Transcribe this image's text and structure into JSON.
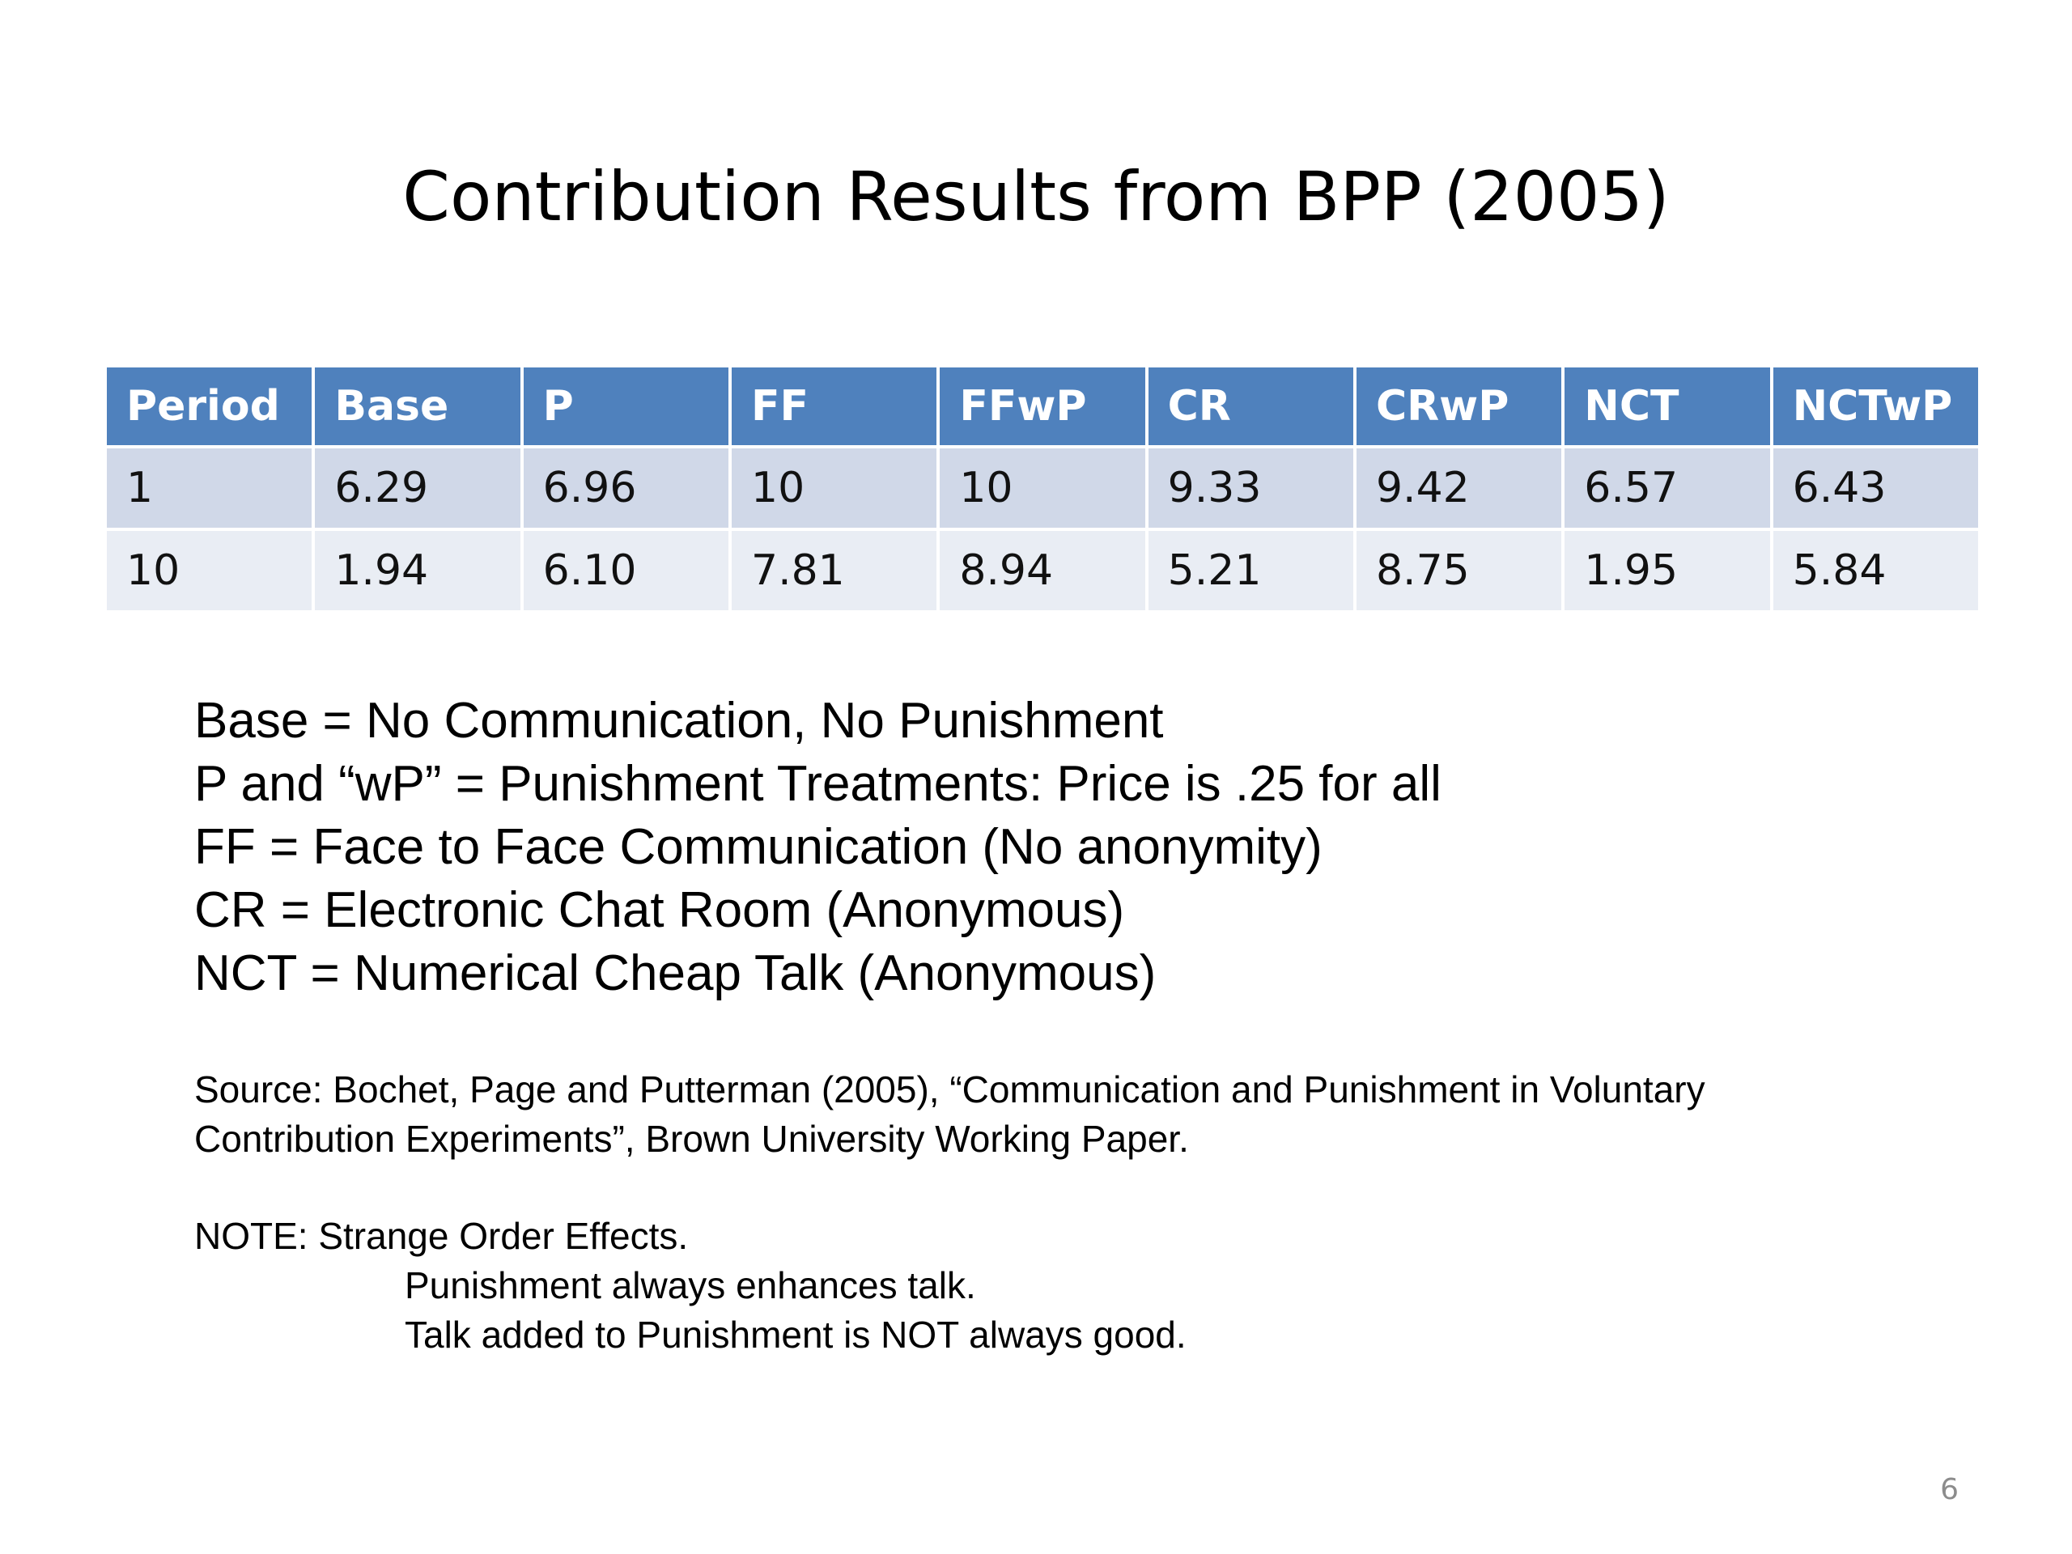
{
  "slide": {
    "title": "Contribution Results from BPP (2005)",
    "page_number": "6"
  },
  "table": {
    "headers": [
      "Period",
      "Base",
      "P",
      "FF",
      "FFwP",
      "CR",
      "CRwP",
      "NCT",
      "NCTwP"
    ],
    "rows": [
      [
        "1",
        "6.29",
        "6.96",
        "10",
        "10",
        "9.33",
        "9.42",
        "6.57",
        "6.43"
      ],
      [
        "10",
        "1.94",
        "6.10",
        "7.81",
        "8.94",
        "5.21",
        "8.75",
        "1.95",
        "5.84"
      ]
    ]
  },
  "legend": [
    "Base = No Communication, No Punishment",
    "P and “wP” = Punishment Treatments: Price is .25 for all",
    "FF = Face to Face Communication (No anonymity)",
    "CR = Electronic Chat Room (Anonymous)",
    "NCT = Numerical Cheap Talk (Anonymous)"
  ],
  "source": {
    "line1": "Source: Bochet, Page and Putterman (2005), “Communication and Punishment in Voluntary",
    "line2": "Contribution Experiments”, Brown University Working Paper."
  },
  "note": {
    "heading": "NOTE: Strange Order Effects.",
    "items": [
      "Punishment always enhances talk.",
      "Talk added to Punishment is NOT always good."
    ]
  },
  "colors": {
    "header_bg": "#4f81bd",
    "row_odd_bg": "#d0d8e8",
    "row_even_bg": "#e9edf4"
  }
}
